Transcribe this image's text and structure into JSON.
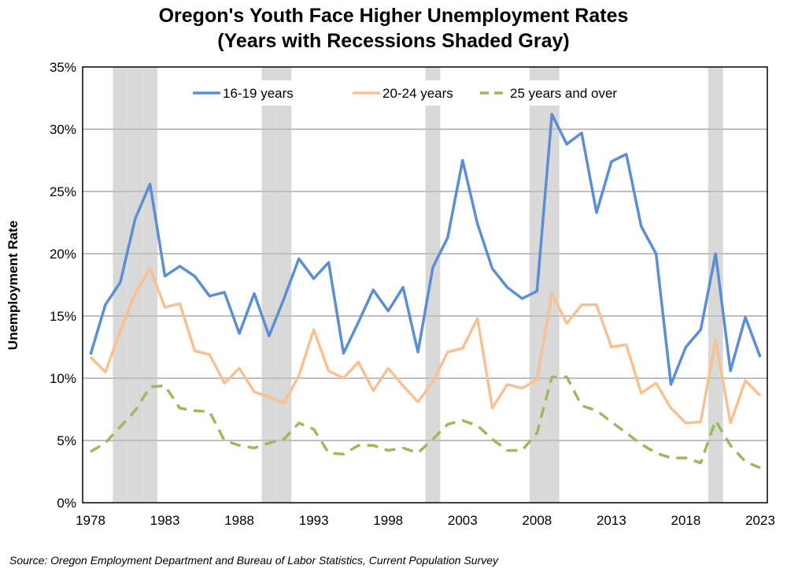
{
  "chart_data": {
    "type": "line",
    "title": [
      "Oregon's Youth Face Higher Unemployment Rates",
      "(Years with Recessions Shaded Gray)"
    ],
    "xlabel": "",
    "ylabel": "Unemployment Rate",
    "source": "Source: Oregon Employment Department and Bureau of Labor Statistics, Current Population Survey",
    "xlim": [
      1978,
      2023
    ],
    "ylim": [
      0,
      35
    ],
    "x_ticks": [
      "1978",
      "1983",
      "1988",
      "1993",
      "1998",
      "2003",
      "2008",
      "2013",
      "2018",
      "2023"
    ],
    "y_ticks": [
      "0%",
      "5%",
      "10%",
      "15%",
      "20%",
      "25%",
      "30%",
      "35%"
    ],
    "grid": "horizontal",
    "legend_position": "top",
    "recession_years": [
      1980,
      1981,
      1982,
      1990,
      1991,
      2001,
      2008,
      2009,
      2020
    ],
    "recession_color": "#d9d9d9",
    "x": [
      1978,
      1979,
      1980,
      1981,
      1982,
      1983,
      1984,
      1985,
      1986,
      1987,
      1988,
      1989,
      1990,
      1991,
      1992,
      1993,
      1994,
      1995,
      1996,
      1997,
      1998,
      1999,
      2000,
      2001,
      2002,
      2003,
      2004,
      2005,
      2006,
      2007,
      2008,
      2009,
      2010,
      2011,
      2012,
      2013,
      2014,
      2015,
      2016,
      2017,
      2018,
      2019,
      2020,
      2021,
      2022,
      2023
    ],
    "series": [
      {
        "name": "16-19 years",
        "color": "#5a8fd6",
        "style": "solid",
        "values": [
          11.9,
          15.9,
          17.7,
          22.8,
          25.6,
          18.2,
          19.0,
          18.2,
          16.6,
          16.9,
          13.6,
          16.8,
          13.4,
          16.4,
          19.6,
          18.0,
          19.3,
          12.0,
          14.5,
          17.1,
          15.4,
          17.3,
          12.1,
          18.9,
          21.3,
          27.5,
          22.4,
          18.8,
          17.3,
          16.4,
          17.0,
          31.2,
          28.8,
          29.7,
          23.3,
          27.4,
          28.0,
          22.2,
          20.0,
          9.5,
          12.5,
          13.9,
          20.0,
          10.6,
          14.9,
          11.7
        ]
      },
      {
        "name": "20-24 years",
        "color": "#f9c191",
        "style": "solid",
        "values": [
          11.7,
          10.5,
          13.8,
          16.8,
          18.8,
          15.7,
          16.0,
          12.2,
          11.9,
          9.6,
          10.8,
          8.9,
          8.5,
          8.0,
          10.2,
          13.9,
          10.6,
          10.0,
          11.3,
          9.0,
          10.8,
          9.4,
          8.1,
          9.7,
          12.1,
          12.4,
          14.8,
          7.6,
          9.5,
          9.2,
          9.9,
          16.8,
          14.4,
          15.9,
          15.9,
          12.5,
          12.7,
          8.8,
          9.6,
          7.6,
          6.4,
          6.5,
          13.1,
          6.4,
          9.8,
          8.6
        ]
      },
      {
        "name": "25 years and over",
        "color": "#9bbb59",
        "style": "dashed",
        "values": [
          4.1,
          4.8,
          6.1,
          7.4,
          9.3,
          9.4,
          7.6,
          7.4,
          7.3,
          5.0,
          4.6,
          4.4,
          4.8,
          5.1,
          6.4,
          5.9,
          4.0,
          3.9,
          4.6,
          4.6,
          4.2,
          4.4,
          4.0,
          5.1,
          6.3,
          6.6,
          6.2,
          5.1,
          4.2,
          4.2,
          5.6,
          10.1,
          10.1,
          7.8,
          7.4,
          6.5,
          5.6,
          4.7,
          4.0,
          3.6,
          3.6,
          3.2,
          6.6,
          4.6,
          3.3,
          2.8
        ]
      }
    ]
  }
}
